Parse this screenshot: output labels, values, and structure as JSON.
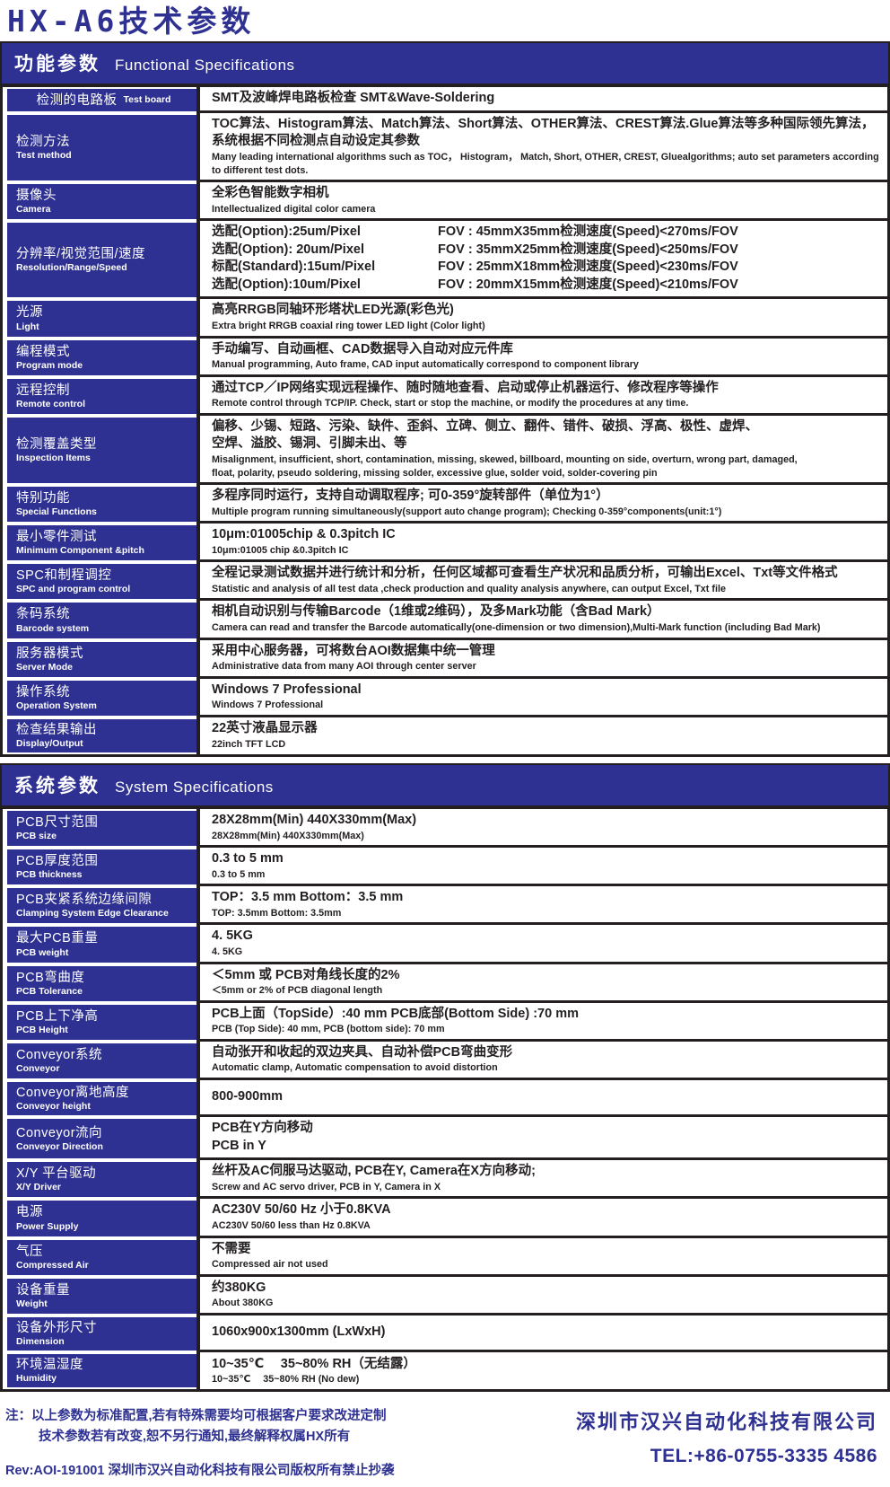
{
  "colors": {
    "accent": "#2e3191",
    "ink": "#231f20",
    "background": "#ffffff"
  },
  "page": {
    "title": "HX-A6技术参数"
  },
  "sections": [
    {
      "id": "functional",
      "heading_zh": "功能参数",
      "heading_en": "Functional Specifications",
      "rows": [
        {
          "label_zh": "检测的电路板",
          "label_en": "Test board",
          "inline": true,
          "center": true,
          "lines": [
            {
              "k": "zh",
              "t": "SMT及波峰焊电路板检查 SMT&Wave-Soldering"
            }
          ]
        },
        {
          "label_zh": "检测方法",
          "label_en": "Test method",
          "lines": [
            {
              "k": "zh",
              "t": "TOC算法、Histogram算法、Match算法、Short算法、OTHER算法、CREST算法.Glue算法等多种国际领先算法，系统根据不同检测点自动设定其参数"
            },
            {
              "k": "en",
              "t": "Many leading international algorithms such as TOC， Histogram， Match, Short, OTHER, CREST, Gluealgorithms; auto set parameters according to different test dots."
            }
          ]
        },
        {
          "label_zh": "摄像头",
          "label_en": "Camera",
          "lines": [
            {
              "k": "zh",
              "t": "全彩色智能数字相机"
            },
            {
              "k": "en",
              "t": "Intellectualized digital color camera"
            }
          ]
        },
        {
          "label_zh": "分辨率/视觉范围/速度",
          "label_en": "Resolution/Range/Speed",
          "lines": [
            {
              "k": "zh",
              "cols": [
                "选配(Option):25um/Pixel",
                "FOV : 45mmX35mm检测速度(Speed)<270ms/FOV"
              ]
            },
            {
              "k": "zh",
              "cols": [
                "选配(Option): 20um/Pixel",
                "FOV : 35mmX25mm检测速度(Speed)<250ms/FOV"
              ]
            },
            {
              "k": "zh",
              "cols": [
                "标配(Standard):15um/Pixel",
                "FOV : 25mmX18mm检测速度(Speed)<230ms/FOV"
              ]
            },
            {
              "k": "zh",
              "cols": [
                "选配(Option):10um/Pixel",
                "FOV : 20mmX15mm检测速度(Speed)<210ms/FOV"
              ]
            }
          ]
        },
        {
          "label_zh": "光源",
          "label_en": "Light",
          "lines": [
            {
              "k": "zh",
              "t": "高亮RRGB同轴环形塔状LED光源(彩色光)"
            },
            {
              "k": "en",
              "t": "Extra bright RRGB coaxial ring tower LED light (Color light)"
            }
          ]
        },
        {
          "label_zh": "编程模式",
          "label_en": "Program mode",
          "lines": [
            {
              "k": "zh",
              "t": "手动编写、自动画框、CAD数据导入自动对应元件库"
            },
            {
              "k": "en",
              "t": "Manual programming, Auto frame, CAD input automatically correspond to component library"
            }
          ]
        },
        {
          "label_zh": "远程控制",
          "label_en": "Remote control",
          "lines": [
            {
              "k": "zh",
              "t": "通过TCP／IP网络实现远程操作、随时随地查看、启动或停止机器运行、修改程序等操作"
            },
            {
              "k": "en",
              "t": "Remote control through TCP/IP. Check, start or stop the machine, or modify the procedures at any time."
            }
          ]
        },
        {
          "label_zh": "检测覆盖类型",
          "label_en": "Inspection Items",
          "lines": [
            {
              "k": "zh",
              "t": "偏移、少锡、短路、污染、缺件、歪斜、立碑、侧立、翻件、错件、破损、浮高、极性、虚焊、"
            },
            {
              "k": "zh",
              "t": "空焊、溢胶、锡洞、引脚未出、等"
            },
            {
              "k": "en",
              "t": "Misalignment, insufficient, short, contamination, missing, skewed, billboard, mounting on side, overturn, wrong part, damaged,"
            },
            {
              "k": "en",
              "t": "float, polarity, pseudo soldering, missing solder, excessive glue, solder void, solder-covering pin"
            }
          ]
        },
        {
          "label_zh": "特别功能",
          "label_en": "Special Functions",
          "lines": [
            {
              "k": "zh",
              "t": "多程序同时运行，支持自动调取程序; 可0-359°旋转部件（单位为1°）"
            },
            {
              "k": "en",
              "t": "Multiple program running simultaneously(support auto change program); Checking 0-359°components(unit:1°)"
            }
          ]
        },
        {
          "label_zh": "最小零件测试",
          "label_en": "Minimum Component &pitch",
          "lines": [
            {
              "k": "zh",
              "t": "10μm:01005chip & 0.3pitch IC"
            },
            {
              "k": "en",
              "t": "10μm:01005 chip &0.3pitch IC"
            }
          ]
        },
        {
          "label_zh": "SPC和制程调控",
          "label_en": "SPC and program control",
          "lines": [
            {
              "k": "zh",
              "t": "全程记录测试数据并进行统计和分析，任何区域都可查看生产状况和品质分析，可输出Excel、Txt等文件格式"
            },
            {
              "k": "en",
              "t": "Statistic and analysis of all test data ,check production and quality analysis anywhere, can output Excel, Txt file"
            }
          ]
        },
        {
          "label_zh": "条码系统",
          "label_en": "Barcode system",
          "lines": [
            {
              "k": "zh",
              "t": "相机自动识别与传输Barcode（1维或2维码），及多Mark功能（含Bad Mark）"
            },
            {
              "k": "en",
              "t": "Camera can read and transfer the Barcode automatically(one-dimension or two dimension),Multi-Mark function (including Bad Mark)"
            }
          ]
        },
        {
          "label_zh": "服务器模式",
          "label_en": "Server Mode",
          "lines": [
            {
              "k": "zh",
              "t": "采用中心服务器，可将数台AOI数据集中统一管理"
            },
            {
              "k": "en",
              "t": "Administrative data from many AOI through center server"
            }
          ]
        },
        {
          "label_zh": "操作系统",
          "label_en": "Operation System",
          "lines": [
            {
              "k": "zh",
              "t": "Windows 7 Professional"
            },
            {
              "k": "en",
              "t": "Windows 7 Professional"
            }
          ]
        },
        {
          "label_zh": "检查结果输出",
          "label_en": "Display/Output",
          "lines": [
            {
              "k": "zh",
              "t": "22英寸液晶显示器"
            },
            {
              "k": "en",
              "t": "22inch TFT LCD"
            }
          ]
        }
      ]
    },
    {
      "id": "system",
      "heading_zh": "系统参数",
      "heading_en": "System Specifications",
      "rows": [
        {
          "label_zh": "PCB尺寸范围",
          "label_en": "PCB size",
          "lines": [
            {
              "k": "zh",
              "t": "28X28mm(Min) 440X330mm(Max)"
            },
            {
              "k": "en",
              "t": "28X28mm(Min) 440X330mm(Max)"
            }
          ]
        },
        {
          "label_zh": "PCB厚度范围",
          "label_en": "PCB thickness",
          "lines": [
            {
              "k": "zh",
              "t": "0.3 to 5 mm"
            },
            {
              "k": "en",
              "t": "0.3 to 5 mm"
            }
          ]
        },
        {
          "label_zh": "PCB夹紧系统边缘间隙",
          "label_en": "Clamping System  Edge Clearance",
          "lines": [
            {
              "k": "zh",
              "t": "TOP：3.5 mm Bottom：3.5 mm"
            },
            {
              "k": "en",
              "t": "TOP: 3.5mm Bottom: 3.5mm"
            }
          ]
        },
        {
          "label_zh": "最大PCB重量",
          "label_en": "PCB weight",
          "lines": [
            {
              "k": "zh",
              "t": "4. 5KG"
            },
            {
              "k": "en",
              "t": "4. 5KG"
            }
          ]
        },
        {
          "label_zh": "PCB弯曲度",
          "label_en": "PCB Tolerance",
          "lines": [
            {
              "k": "zh",
              "t": "＜5mm 或 PCB对角线长度的2%"
            },
            {
              "k": "en",
              "t": "＜5mm or 2% of PCB  diagonal length"
            }
          ]
        },
        {
          "label_zh": "PCB上下净高",
          "label_en": "PCB Height",
          "lines": [
            {
              "k": "zh",
              "t": "PCB上面（TopSide）:40 mm PCB底部(Bottom Side) :70 mm"
            },
            {
              "k": "en",
              "t": "PCB (Top Side): 40 mm, PCB (bottom side): 70 mm"
            }
          ]
        },
        {
          "label_zh": "Conveyor系统",
          "label_en": "Conveyor",
          "lines": [
            {
              "k": "zh",
              "t": "自动张开和收起的双边夹具、自动补偿PCB弯曲变形"
            },
            {
              "k": "en",
              "t": "Automatic clamp, Automatic compensation to avoid distortion"
            }
          ]
        },
        {
          "label_zh": "Conveyor离地高度",
          "label_en": "Conveyor height",
          "center": true,
          "lines": [
            {
              "k": "zh",
              "t": "800-900mm"
            }
          ]
        },
        {
          "label_zh": "Conveyor流向",
          "label_en": "Conveyor Direction",
          "lines": [
            {
              "k": "zh",
              "t": "PCB在Y方向移动"
            },
            {
              "k": "zh",
              "t": "PCB in Y"
            }
          ]
        },
        {
          "label_zh": "X/Y 平台驱动",
          "label_en": "X/Y Driver",
          "lines": [
            {
              "k": "zh",
              "t": "丝杆及AC伺服马达驱动, PCB在Y, Camera在X方向移动;"
            },
            {
              "k": "en",
              "t": "Screw and AC servo driver, PCB in Y, Camera in X"
            }
          ]
        },
        {
          "label_zh": "电源",
          "label_en": "Power Supply",
          "lines": [
            {
              "k": "zh",
              "t": "AC230V 50/60 Hz 小于0.8KVA"
            },
            {
              "k": "en",
              "t": "AC230V 50/60 less than Hz 0.8KVA"
            }
          ]
        },
        {
          "label_zh": "气压",
          "label_en": "Compressed Air",
          "lines": [
            {
              "k": "zh",
              "t": "不需要"
            },
            {
              "k": "en",
              "t": "Compressed air not used"
            }
          ]
        },
        {
          "label_zh": "设备重量",
          "label_en": "Weight",
          "lines": [
            {
              "k": "zh",
              "t": "约380KG"
            },
            {
              "k": "en",
              "t": "About 380KG"
            }
          ]
        },
        {
          "label_zh": "设备外形尺寸",
          "label_en": "Dimension",
          "center": true,
          "lines": [
            {
              "k": "zh",
              "t": "1060x900x1300mm (LxWxH)"
            }
          ]
        },
        {
          "label_zh": "环境温湿度",
          "label_en": "Humidity",
          "lines": [
            {
              "k": "zh",
              "t": "10~35℃　 35~80% RH（无结露）"
            },
            {
              "k": "en",
              "t": "10~35℃　 35~80% RH (No dew)"
            }
          ]
        }
      ]
    }
  ],
  "footer": {
    "note_line1": "注：以上参数为标准配置,若有特殊需要均可根据客户要求改进定制",
    "note_line2": "技术参数若有改变,恕不另行通知,最终解释权属HX所有",
    "rev": "Rev:AOI-191001 深圳市汉兴自动化科技有限公司版权所有禁止抄袭",
    "company": "深圳市汉兴自动化科技有限公司",
    "tel": "TEL:+86-0755-3335 4586"
  }
}
